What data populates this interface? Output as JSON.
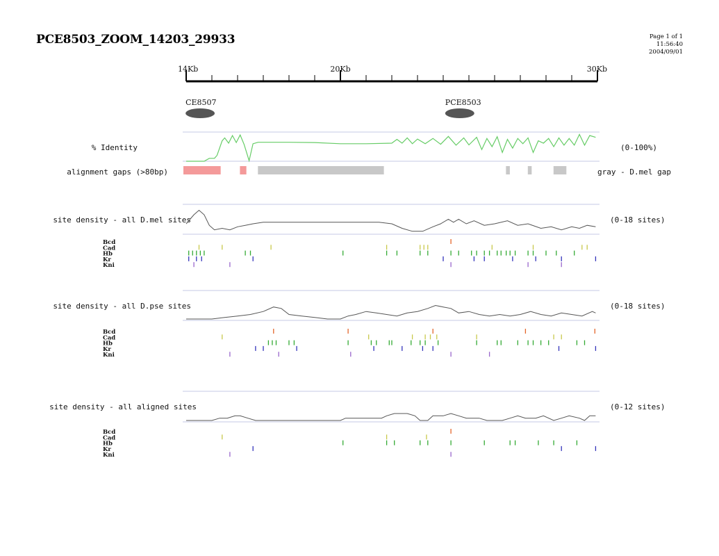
{
  "header": {
    "title": "PCE8503_ZOOM_14203_29933",
    "page_label": "Page 1 of 1",
    "time": "11:56:40",
    "date": "2004/09/01"
  },
  "chart_data": {
    "type": "line",
    "axis": {
      "unit": "Kb",
      "range_kb": [
        14,
        30
      ],
      "labeled_ticks": [
        {
          "kb": 14,
          "label": "14Kb"
        },
        {
          "kb": 20,
          "label": "20Kb"
        },
        {
          "kb": 30,
          "label": "30Kb"
        }
      ],
      "minor_tick_kb": [
        15,
        16,
        17,
        18,
        19,
        21,
        22,
        23,
        24,
        25,
        26,
        27,
        28,
        29
      ]
    },
    "elements": [
      {
        "name": "CE8507",
        "kb": 14.3
      },
      {
        "name": "PCE8503",
        "kb": 24.4
      }
    ],
    "identity": {
      "label": "% Identity",
      "range_label": "(0-100%)",
      "ylim": [
        0,
        100
      ],
      "color": "#66cc66",
      "points": [
        [
          14.0,
          0
        ],
        [
          14.7,
          0
        ],
        [
          14.9,
          10
        ],
        [
          15.1,
          10
        ],
        [
          15.2,
          20
        ],
        [
          15.4,
          70
        ],
        [
          15.5,
          80
        ],
        [
          15.65,
          62
        ],
        [
          15.8,
          88
        ],
        [
          15.95,
          64
        ],
        [
          16.1,
          90
        ],
        [
          16.25,
          58
        ],
        [
          16.45,
          2
        ],
        [
          16.6,
          60
        ],
        [
          16.8,
          65
        ],
        [
          18.0,
          65
        ],
        [
          19.0,
          64
        ],
        [
          20.0,
          60
        ],
        [
          21.0,
          60
        ],
        [
          22.0,
          62
        ],
        [
          22.2,
          75
        ],
        [
          22.4,
          62
        ],
        [
          22.6,
          80
        ],
        [
          22.8,
          60
        ],
        [
          23.0,
          76
        ],
        [
          23.3,
          60
        ],
        [
          23.6,
          78
        ],
        [
          23.9,
          58
        ],
        [
          24.2,
          85
        ],
        [
          24.5,
          55
        ],
        [
          24.8,
          80
        ],
        [
          25.0,
          56
        ],
        [
          25.3,
          82
        ],
        [
          25.5,
          40
        ],
        [
          25.7,
          78
        ],
        [
          25.9,
          50
        ],
        [
          26.1,
          84
        ],
        [
          26.3,
          30
        ],
        [
          26.5,
          75
        ],
        [
          26.7,
          45
        ],
        [
          26.9,
          78
        ],
        [
          27.1,
          60
        ],
        [
          27.3,
          80
        ],
        [
          27.5,
          30
        ],
        [
          27.7,
          70
        ],
        [
          27.9,
          62
        ],
        [
          28.1,
          78
        ],
        [
          28.3,
          50
        ],
        [
          28.5,
          80
        ],
        [
          28.7,
          55
        ],
        [
          28.9,
          78
        ],
        [
          29.1,
          55
        ],
        [
          29.3,
          92
        ],
        [
          29.5,
          55
        ],
        [
          29.7,
          88
        ],
        [
          29.93,
          82
        ]
      ]
    },
    "gaps": {
      "label": "alignment gaps (>80bp)",
      "legend": "gray - D.mel gap",
      "segments": [
        {
          "start_kb": 14.0,
          "end_kb": 15.45,
          "color": "#f49a9a"
        },
        {
          "start_kb": 16.2,
          "end_kb": 16.45,
          "color": "#f49a9a"
        },
        {
          "start_kb": 16.9,
          "end_kb": 21.8,
          "color": "#c8c8c8"
        },
        {
          "start_kb": 26.55,
          "end_kb": 26.7,
          "color": "#c8c8c8"
        },
        {
          "start_kb": 27.4,
          "end_kb": 27.55,
          "color": "#c8c8c8"
        },
        {
          "start_kb": 28.4,
          "end_kb": 28.9,
          "color": "#c8c8c8"
        }
      ]
    },
    "panels": [
      {
        "label": "site density - all D.mel sites",
        "range_label": "(0-18 sites)",
        "ymax": 18,
        "density": [
          [
            14.0,
            6
          ],
          [
            14.3,
            12
          ],
          [
            14.5,
            15
          ],
          [
            14.7,
            12
          ],
          [
            14.9,
            5
          ],
          [
            15.1,
            2
          ],
          [
            15.4,
            3
          ],
          [
            15.7,
            2
          ],
          [
            16.0,
            4
          ],
          [
            16.3,
            5
          ],
          [
            16.6,
            6
          ],
          [
            17.0,
            7
          ],
          [
            20.0,
            7
          ],
          [
            21.5,
            7
          ],
          [
            22.0,
            6
          ],
          [
            22.4,
            3
          ],
          [
            22.8,
            1
          ],
          [
            23.2,
            1
          ],
          [
            23.6,
            4
          ],
          [
            23.9,
            6
          ],
          [
            24.2,
            9
          ],
          [
            24.4,
            7
          ],
          [
            24.6,
            9
          ],
          [
            24.9,
            6
          ],
          [
            25.2,
            8
          ],
          [
            25.6,
            5
          ],
          [
            26.0,
            6
          ],
          [
            26.5,
            8
          ],
          [
            26.9,
            5
          ],
          [
            27.3,
            6
          ],
          [
            27.8,
            3
          ],
          [
            28.2,
            4
          ],
          [
            28.6,
            2
          ],
          [
            29.0,
            4
          ],
          [
            29.3,
            3
          ],
          [
            29.6,
            5
          ],
          [
            29.93,
            4
          ]
        ],
        "tracks": [
          {
            "name": "Bcd",
            "color": "#e4652a",
            "sites": [
              24.3
            ]
          },
          {
            "name": "Cad",
            "color": "#c8c84a",
            "sites": [
              14.5,
              15.4,
              17.3,
              21.8,
              23.1,
              23.25,
              23.4,
              25.9,
              27.5,
              29.4,
              29.6
            ]
          },
          {
            "name": "Hb",
            "color": "#33aa33",
            "sites": [
              14.1,
              14.25,
              14.4,
              14.55,
              14.7,
              16.3,
              16.5,
              20.1,
              21.8,
              22.2,
              23.1,
              23.4,
              24.3,
              24.6,
              25.1,
              25.3,
              25.6,
              25.8,
              26.1,
              26.25,
              26.45,
              26.6,
              26.8,
              27.3,
              27.5,
              28.0,
              28.4,
              29.1
            ]
          },
          {
            "name": "Kr",
            "color": "#3333bb",
            "sites": [
              14.1,
              14.4,
              14.6,
              16.6,
              24.0,
              25.2,
              25.6,
              26.7,
              27.6,
              28.6,
              29.93
            ]
          },
          {
            "name": "Kni",
            "color": "#9966cc",
            "sites": [
              14.3,
              15.7,
              24.3,
              27.3,
              28.6
            ]
          }
        ]
      },
      {
        "label": "site density - all D.pse sites",
        "range_label": "(0-18 sites)",
        "ymax": 18,
        "density": [
          [
            14.0,
            0
          ],
          [
            15.0,
            0
          ],
          [
            15.5,
            1
          ],
          [
            16.0,
            2
          ],
          [
            16.5,
            3
          ],
          [
            17.0,
            5
          ],
          [
            17.4,
            8
          ],
          [
            17.7,
            7
          ],
          [
            18.0,
            3
          ],
          [
            18.5,
            2
          ],
          [
            19.0,
            1
          ],
          [
            19.5,
            0
          ],
          [
            20.0,
            0
          ],
          [
            20.3,
            2
          ],
          [
            20.6,
            3
          ],
          [
            21.0,
            5
          ],
          [
            21.4,
            4
          ],
          [
            21.8,
            3
          ],
          [
            22.2,
            2
          ],
          [
            22.6,
            4
          ],
          [
            23.0,
            5
          ],
          [
            23.4,
            7
          ],
          [
            23.7,
            9
          ],
          [
            24.0,
            8
          ],
          [
            24.3,
            7
          ],
          [
            24.6,
            4
          ],
          [
            25.0,
            5
          ],
          [
            25.4,
            3
          ],
          [
            25.8,
            2
          ],
          [
            26.2,
            3
          ],
          [
            26.6,
            2
          ],
          [
            27.0,
            3
          ],
          [
            27.4,
            5
          ],
          [
            27.8,
            3
          ],
          [
            28.2,
            2
          ],
          [
            28.6,
            4
          ],
          [
            29.0,
            3
          ],
          [
            29.4,
            2
          ],
          [
            29.8,
            5
          ],
          [
            29.93,
            4
          ]
        ],
        "tracks": [
          {
            "name": "Bcd",
            "color": "#e4652a",
            "sites": [
              17.4,
              20.3,
              23.6,
              27.2,
              29.9
            ]
          },
          {
            "name": "Cad",
            "color": "#c8c84a",
            "sites": [
              15.4,
              21.1,
              22.8,
              23.3,
              23.5,
              23.75,
              25.3,
              28.3,
              28.6
            ]
          },
          {
            "name": "Hb",
            "color": "#33aa33",
            "sites": [
              17.2,
              17.35,
              17.5,
              18.0,
              18.2,
              20.3,
              21.2,
              21.4,
              21.9,
              22.0,
              22.75,
              23.1,
              23.3,
              23.8,
              25.3,
              26.1,
              26.25,
              26.9,
              27.3,
              27.5,
              27.8,
              28.1,
              29.2,
              29.5
            ]
          },
          {
            "name": "Kr",
            "color": "#3333bb",
            "sites": [
              16.7,
              17.0,
              18.3,
              21.3,
              22.4,
              23.2,
              23.6,
              28.5,
              29.93
            ]
          },
          {
            "name": "Kni",
            "color": "#9966cc",
            "sites": [
              15.7,
              17.6,
              20.4,
              24.3,
              25.8
            ]
          }
        ]
      },
      {
        "label": "site density - all aligned sites",
        "range_label": "(0-12 sites)",
        "ymax": 12,
        "density": [
          [
            14.0,
            0
          ],
          [
            15.0,
            0
          ],
          [
            15.3,
            1
          ],
          [
            15.6,
            1
          ],
          [
            15.9,
            2
          ],
          [
            16.1,
            2
          ],
          [
            16.4,
            1
          ],
          [
            16.7,
            0
          ],
          [
            20.0,
            0
          ],
          [
            20.2,
            1
          ],
          [
            21.0,
            1
          ],
          [
            21.6,
            1
          ],
          [
            21.8,
            2
          ],
          [
            22.1,
            3
          ],
          [
            22.6,
            3
          ],
          [
            22.9,
            2
          ],
          [
            23.1,
            0
          ],
          [
            23.4,
            0
          ],
          [
            23.6,
            2
          ],
          [
            24.0,
            2
          ],
          [
            24.3,
            3
          ],
          [
            24.6,
            2
          ],
          [
            24.9,
            1
          ],
          [
            25.4,
            1
          ],
          [
            25.7,
            0
          ],
          [
            26.3,
            0
          ],
          [
            26.6,
            1
          ],
          [
            26.9,
            2
          ],
          [
            27.2,
            1
          ],
          [
            27.6,
            1
          ],
          [
            27.9,
            2
          ],
          [
            28.3,
            0
          ],
          [
            28.6,
            1
          ],
          [
            28.9,
            2
          ],
          [
            29.3,
            1
          ],
          [
            29.5,
            0
          ],
          [
            29.7,
            2
          ],
          [
            29.93,
            2
          ]
        ],
        "tracks": [
          {
            "name": "Bcd",
            "color": "#e4652a",
            "sites": [
              24.3
            ]
          },
          {
            "name": "Cad",
            "color": "#c8c84a",
            "sites": [
              15.4,
              21.8,
              23.35
            ]
          },
          {
            "name": "Hb",
            "color": "#33aa33",
            "sites": [
              20.1,
              21.8,
              22.1,
              23.1,
              23.4,
              24.3,
              25.6,
              26.6,
              26.8,
              27.7,
              28.3,
              29.2
            ]
          },
          {
            "name": "Kr",
            "color": "#3333bb",
            "sites": [
              16.6,
              28.6,
              29.93
            ]
          },
          {
            "name": "Kni",
            "color": "#9966cc",
            "sites": [
              15.7,
              24.3
            ]
          }
        ]
      }
    ]
  }
}
